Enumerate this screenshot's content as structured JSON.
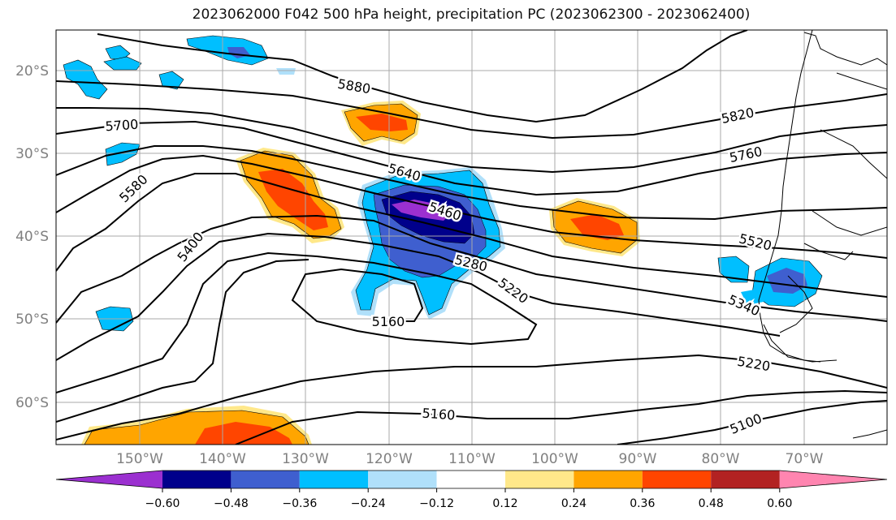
{
  "title": "2023062000 F042 500 hPa height, precipitation PC (2023062300 - 2023062400)",
  "map": {
    "lat_labels": [
      "20°S",
      "30°S",
      "40°S",
      "50°S",
      "60°S"
    ],
    "lon_labels": [
      "150°W",
      "140°W",
      "130°W",
      "120°W",
      "110°W",
      "100°W",
      "90°W",
      "80°W",
      "70°W"
    ],
    "grid": true,
    "contour_labels": [
      "5880",
      "5700",
      "5820",
      "5760",
      "5640",
      "5580",
      "5460",
      "5520",
      "5400",
      "5280",
      "5220",
      "5340",
      "5160",
      "5220",
      "5160",
      "5100"
    ],
    "contour_color": "#000000"
  },
  "colorbar": {
    "ticks": [
      "−0.60",
      "−0.48",
      "−0.36",
      "−0.24",
      "−0.12",
      "0.12",
      "0.24",
      "0.36",
      "0.48",
      "0.60"
    ],
    "colors": [
      "#9b30d0",
      "#00008b",
      "#3f5fcf",
      "#00bfff",
      "#b0e0fa",
      "#ffffff",
      "#ffe88a",
      "#ffa500",
      "#ff4500",
      "#b22222",
      "#ff85b0"
    ]
  },
  "legend_colors": {
    "neg_light": "#b0e0fa",
    "neg_mid": "#00bfff",
    "neg_strong": "#3f5fcf",
    "neg_dark": "#00008b",
    "neg_extreme": "#9b30d0",
    "pos_light": "#ffe88a",
    "pos_mid": "#ffa500",
    "pos_strong": "#ff4500"
  }
}
